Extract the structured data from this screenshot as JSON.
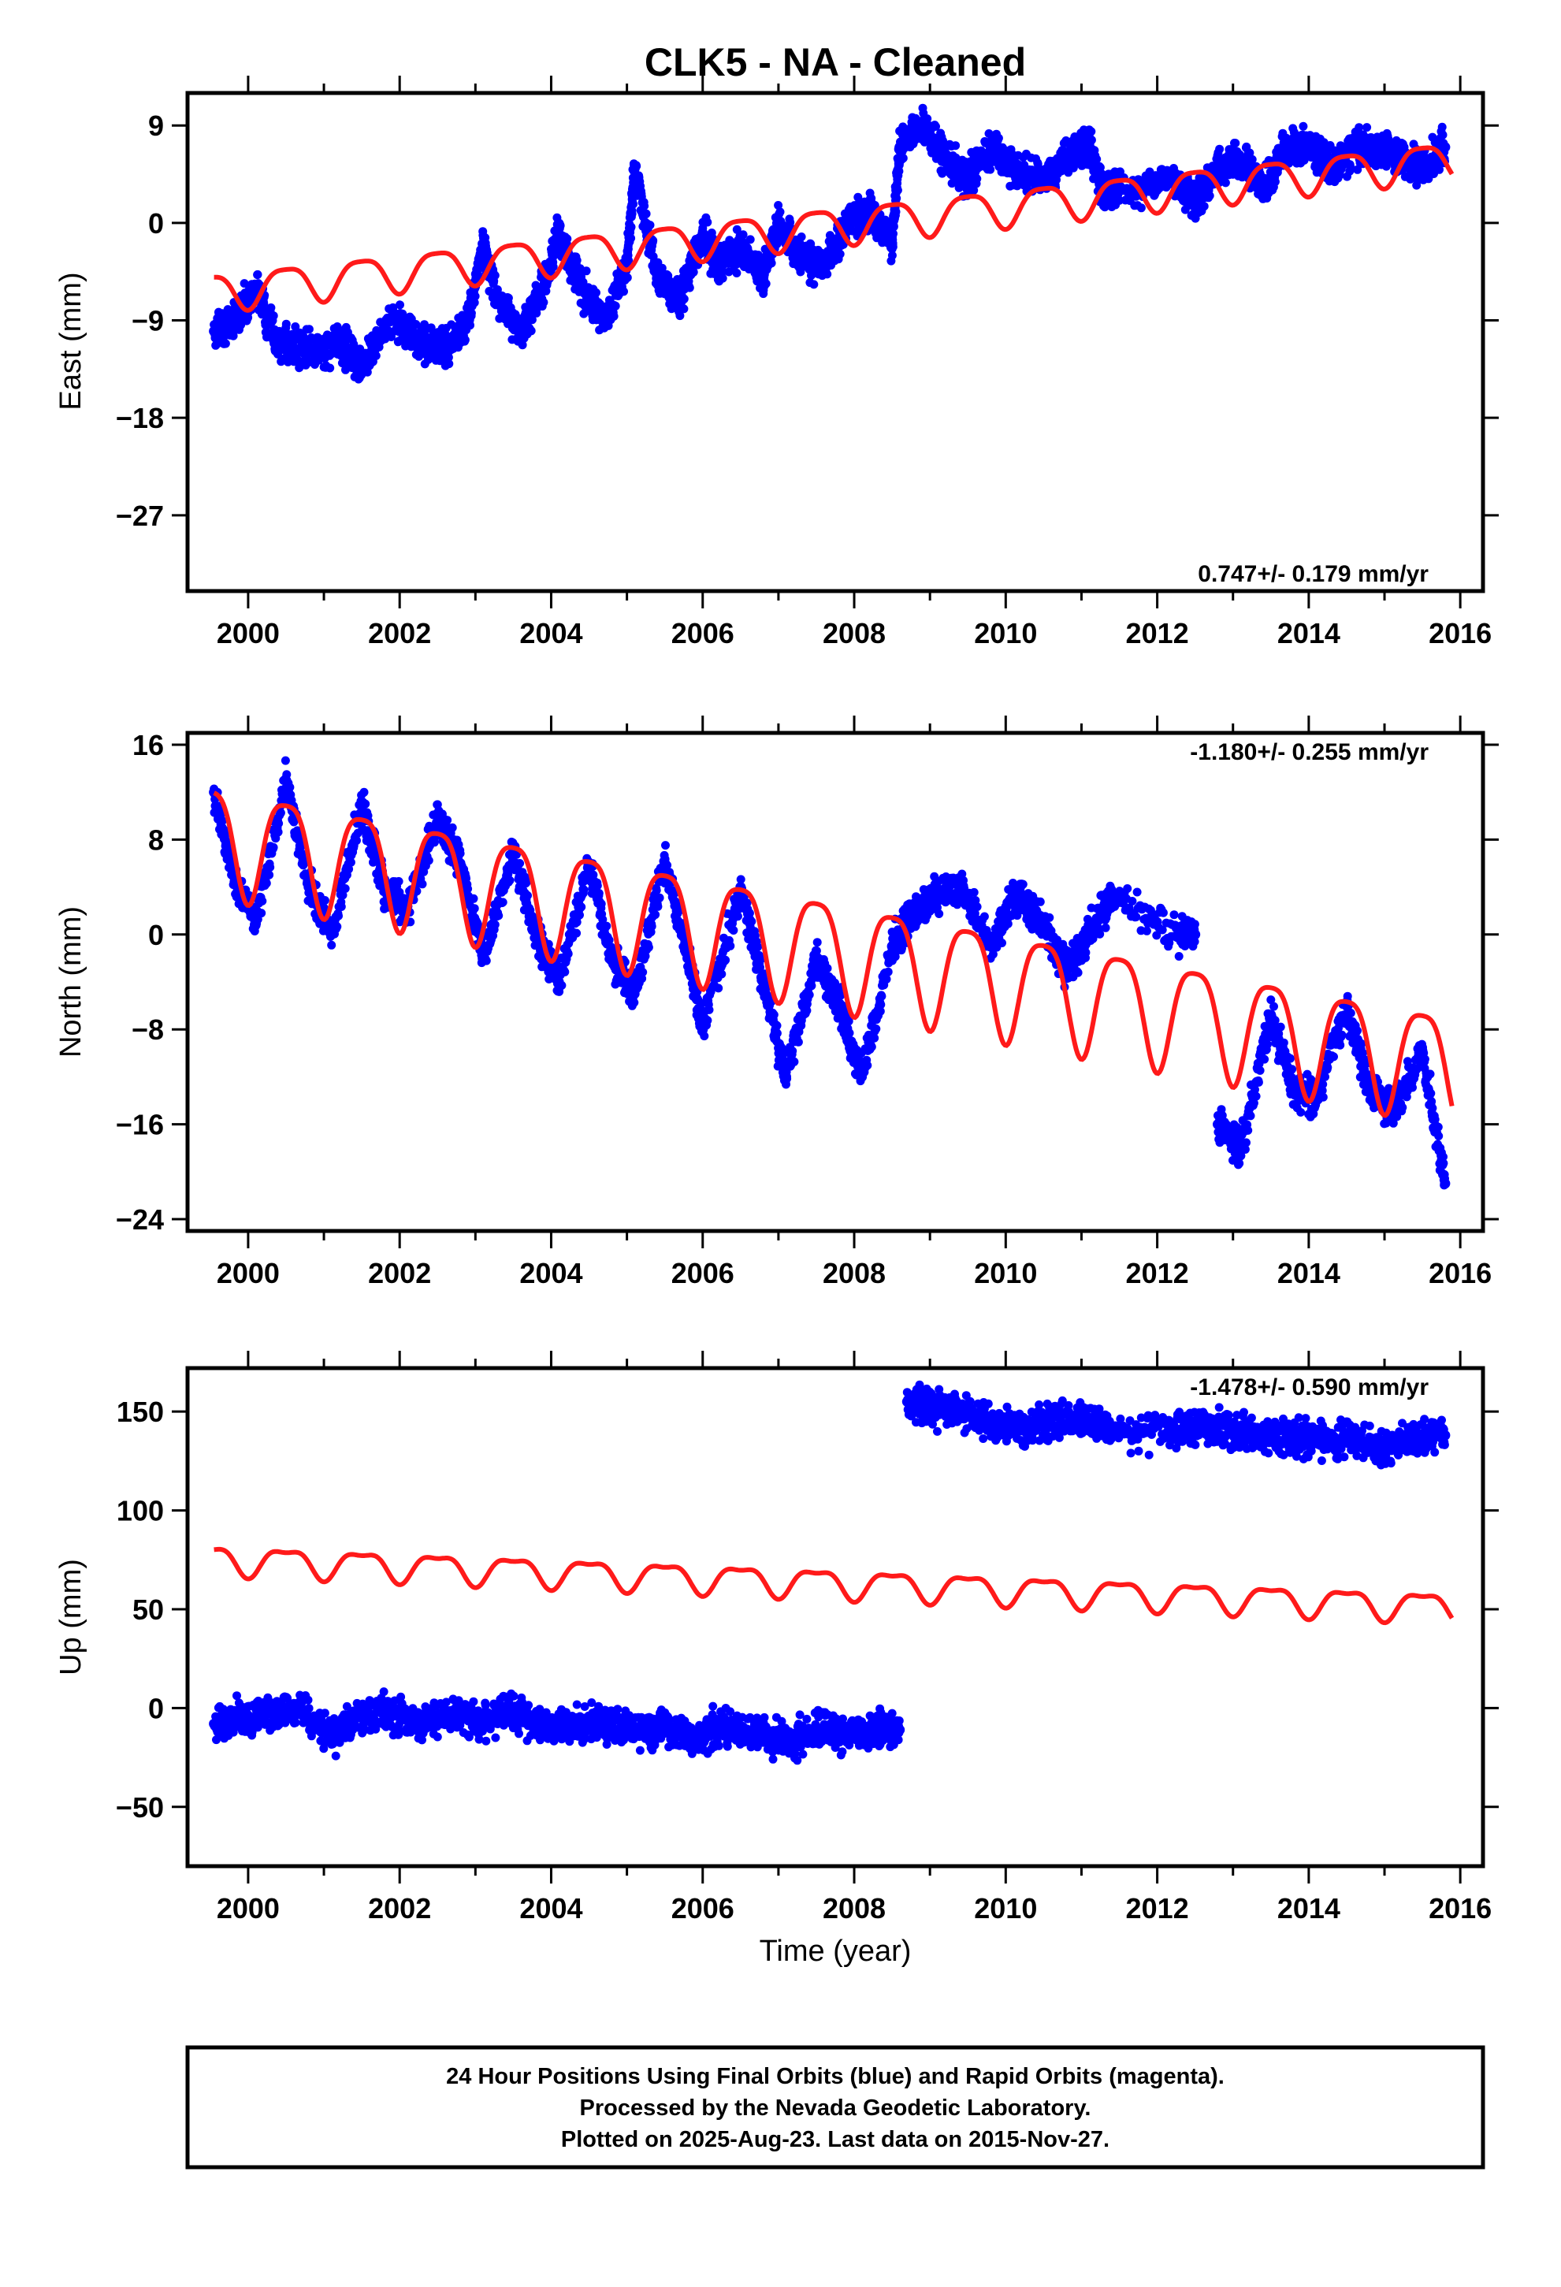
{
  "title": "CLK5  - NA - Cleaned",
  "colors": {
    "final": "#0000ff",
    "model": "#ff1a1a",
    "frame": "#000000"
  },
  "footer": {
    "line1": "24 Hour Positions Using Final Orbits (blue) and Rapid Orbits (magenta).",
    "line2": "Processed by the Nevada Geodetic Laboratory.",
    "line3": "Plotted on 2025-Aug-23. Last data on 2015-Nov-27."
  },
  "chart_data": [
    {
      "type": "scatter",
      "ylabel": "East (mm)",
      "xlabel": "",
      "xlim": [
        1999.2,
        2016.3
      ],
      "ylim": [
        -34,
        12
      ],
      "xticks": [
        2000,
        2002,
        2004,
        2006,
        2008,
        2010,
        2012,
        2014,
        2016
      ],
      "yticks": [
        9,
        0,
        -9,
        -18,
        -27
      ],
      "rate_text": "0.747+/- 0.179 mm/yr",
      "rate_position": "bottom-right",
      "series": [
        {
          "role": "final-orbit-positions",
          "x": [
            1999.55,
            1999.8,
            2000.1,
            2000.4,
            2000.8,
            2001.2,
            2001.5,
            2001.9,
            2002.3,
            2002.6,
            2002.9,
            2003.1,
            2003.3,
            2003.6,
            2003.9,
            2004.1,
            2004.4,
            2004.7,
            2005.0,
            2005.1,
            2005.4,
            2005.7,
            2006.0,
            2006.2,
            2006.5,
            2006.8,
            2007.0,
            2007.3,
            2007.6,
            2007.9,
            2008.2,
            2008.5,
            2008.6,
            2008.9,
            2009.2,
            2009.5,
            2009.8,
            2010.1,
            2010.5,
            2010.8,
            2011.1,
            2011.3,
            2011.5,
            2012.2,
            2012.5,
            2012.8,
            2013.1,
            2013.4,
            2013.7,
            2014.0,
            2014.3,
            2014.6,
            2014.9,
            2015.2,
            2015.5,
            2015.8
          ],
          "y": [
            -10,
            -9,
            -6,
            -11,
            -12,
            -11,
            -13,
            -9,
            -11,
            -12,
            -9,
            -2,
            -7,
            -10,
            -6,
            -1,
            -6,
            -9,
            -4,
            5,
            -5,
            -7,
            -1,
            -4,
            -2,
            -5,
            0,
            -3,
            -4,
            0,
            1,
            -2,
            7,
            9,
            6,
            4,
            7,
            5,
            4,
            6,
            7,
            3,
            3,
            4,
            2,
            5,
            6,
            3,
            7,
            7,
            5,
            7,
            7,
            6,
            5,
            7
          ]
        },
        {
          "role": "model-fit",
          "trend_mm_per_yr": 0.747,
          "intercept_mm_at_2008": 0.0,
          "annual_amplitude_mm": 1.7,
          "semiannual_amplitude_mm": 0.4,
          "start": 1999.55,
          "end": 2015.9
        }
      ]
    },
    {
      "type": "scatter",
      "ylabel": "North (mm)",
      "xlabel": "",
      "xlim": [
        1999.2,
        2016.3
      ],
      "ylim": [
        -25,
        17
      ],
      "xticks": [
        2000,
        2002,
        2004,
        2006,
        2008,
        2010,
        2012,
        2014,
        2016
      ],
      "yticks": [
        16,
        8,
        0,
        -8,
        -16,
        -24
      ],
      "rate_text": "-1.180+/- 0.255 mm/yr",
      "rate_position": "top-right",
      "series": [
        {
          "role": "final-orbit-positions",
          "x": [
            1999.55,
            1999.8,
            2000.1,
            2000.5,
            2000.8,
            2001.1,
            2001.5,
            2001.8,
            2002.1,
            2002.5,
            2002.8,
            2003.1,
            2003.5,
            2003.8,
            2004.1,
            2004.5,
            2004.8,
            2005.1,
            2005.5,
            2005.8,
            2006.0,
            2006.5,
            2006.8,
            2007.1,
            2007.5,
            2007.8,
            2008.1,
            2008.5,
            2008.7,
            2009.0,
            2009.4,
            2009.8,
            2010.1,
            2010.4,
            2010.8,
            2011.1,
            2011.4,
            2012.3,
            2012.5,
            2012.8,
            2013.1,
            2013.5,
            2013.8,
            2014.1,
            2014.5,
            2014.8,
            2015.1,
            2015.5,
            2015.8
          ],
          "y": [
            12,
            5,
            1,
            13,
            4,
            0,
            11,
            4,
            2,
            10,
            6,
            -2,
            7,
            0,
            -4,
            6,
            -2,
            -5,
            6,
            -2,
            -8,
            4,
            -4,
            -12,
            -2,
            -6,
            -12,
            -1,
            1,
            3,
            4,
            -1,
            3,
            2,
            -3,
            0,
            3,
            0,
            0,
            -16,
            -18,
            -7,
            -13,
            -14,
            -6,
            -13,
            -15,
            -10,
            -21
          ]
        },
        {
          "role": "model-fit",
          "trend_mm_per_yr": -1.18,
          "intercept_mm_at_2008": -1.5,
          "annual_amplitude_mm": 4.5,
          "semiannual_amplitude_mm": 1.0,
          "start": 1999.55,
          "end": 2015.9
        }
      ]
    },
    {
      "type": "scatter",
      "ylabel": "Up (mm)",
      "xlabel": "Time (year)",
      "xlim": [
        1999.2,
        2016.3
      ],
      "ylim": [
        -80,
        172
      ],
      "xticks": [
        2000,
        2002,
        2004,
        2006,
        2008,
        2010,
        2012,
        2014,
        2016
      ],
      "yticks": [
        150,
        100,
        50,
        0,
        -50
      ],
      "rate_text": "-1.478+/- 0.590 mm/yr",
      "rate_position": "top-right",
      "series": [
        {
          "role": "final-orbit-positions",
          "x": [
            1999.55,
            1999.9,
            2000.3,
            2000.7,
            2001.1,
            2001.5,
            2001.9,
            2002.3,
            2002.7,
            2003.1,
            2003.5,
            2003.9,
            2004.3,
            2004.7,
            2005.1,
            2005.5,
            2005.9,
            2006.3,
            2006.7,
            2007.1,
            2007.5,
            2007.9,
            2008.3,
            2008.6,
            2008.7,
            2009.0,
            2009.4,
            2009.8,
            2010.2,
            2010.6,
            2011.0,
            2011.4,
            2012.2,
            2012.6,
            2013.0,
            2013.4,
            2013.8,
            2014.2,
            2014.6,
            2015.0,
            2015.4,
            2015.8
          ],
          "y": [
            -8,
            -5,
            -3,
            0,
            -15,
            -5,
            -3,
            -8,
            -2,
            -6,
            -3,
            -8,
            -10,
            -7,
            -12,
            -9,
            -15,
            -10,
            -12,
            -17,
            -11,
            -13,
            -10,
            -11,
            155,
            152,
            150,
            144,
            142,
            144,
            147,
            140,
            140,
            143,
            141,
            137,
            138,
            135,
            136,
            131,
            137,
            138
          ]
        },
        {
          "role": "model-fit",
          "trend_mm_per_yr": -1.478,
          "intercept_mm_at_2008": 63.0,
          "annual_amplitude_mm": 7.0,
          "semiannual_amplitude_mm": 2.5,
          "start": 1999.55,
          "end": 2015.9
        }
      ]
    }
  ]
}
